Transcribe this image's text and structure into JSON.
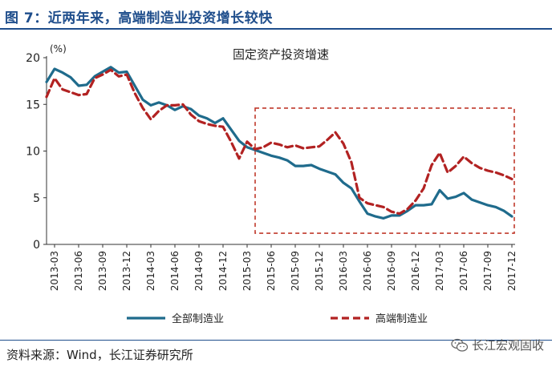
{
  "header": {
    "title": "图 7：近两年来，高端制造业投资增长较快"
  },
  "footer": {
    "source": "资料来源：Wind，长江证券研究所",
    "watermark": "长江宏观固收"
  },
  "colors": {
    "title": "#1f4e8c",
    "series_all": "#1f6b8c",
    "series_high": "#b22222",
    "highlight_box": "#c0392b"
  },
  "chart_data": {
    "type": "line",
    "title": "固定资产投资增速",
    "unit_label": "(%)",
    "xlabel": "",
    "ylabel": "(%)",
    "ylim": [
      0,
      20
    ],
    "yticks": [
      0,
      5,
      10,
      15,
      20
    ],
    "xlim": [
      "2013-02",
      "2017-12"
    ],
    "x_ticks": [
      "2013-03",
      "2013-06",
      "2013-09",
      "2013-12",
      "2014-03",
      "2014-06",
      "2014-09",
      "2014-12",
      "2015-03",
      "2015-06",
      "2015-09",
      "2015-12",
      "2016-03",
      "2016-06",
      "2016-09",
      "2016-12",
      "2017-03",
      "2017-06",
      "2017-09",
      "2017-12"
    ],
    "legend_position": "bottom",
    "highlight_range": {
      "x_start": "2015-04",
      "x_end": "2017-12",
      "y_low": 1.2,
      "y_high": 14.6
    },
    "x": [
      "2013-02",
      "2013-03",
      "2013-04",
      "2013-05",
      "2013-06",
      "2013-07",
      "2013-08",
      "2013-09",
      "2013-10",
      "2013-11",
      "2013-12",
      "2014-01",
      "2014-02",
      "2014-03",
      "2014-04",
      "2014-05",
      "2014-06",
      "2014-07",
      "2014-08",
      "2014-09",
      "2014-10",
      "2014-11",
      "2014-12",
      "2015-01",
      "2015-02",
      "2015-03",
      "2015-04",
      "2015-05",
      "2015-06",
      "2015-07",
      "2015-08",
      "2015-09",
      "2015-10",
      "2015-11",
      "2015-12",
      "2016-01",
      "2016-02",
      "2016-03",
      "2016-04",
      "2016-05",
      "2016-06",
      "2016-07",
      "2016-08",
      "2016-09",
      "2016-10",
      "2016-11",
      "2016-12",
      "2017-01",
      "2017-02",
      "2017-03",
      "2017-04",
      "2017-05",
      "2017-06",
      "2017-07",
      "2017-08",
      "2017-09",
      "2017-10",
      "2017-11",
      "2017-12"
    ],
    "series": [
      {
        "name": "全部制造业",
        "style": "solid",
        "values": [
          17.4,
          18.8,
          18.4,
          17.9,
          17.0,
          17.1,
          18.0,
          18.5,
          19.0,
          18.4,
          18.5,
          17.0,
          15.5,
          14.9,
          15.2,
          14.9,
          14.4,
          14.8,
          14.5,
          13.8,
          13.5,
          13.0,
          13.5,
          12.3,
          11.1,
          10.4,
          10.1,
          9.8,
          9.5,
          9.3,
          9.0,
          8.4,
          8.4,
          8.5,
          8.1,
          7.8,
          7.5,
          6.6,
          6.0,
          4.6,
          3.3,
          3.0,
          2.8,
          3.1,
          3.1,
          3.6,
          4.2,
          4.2,
          4.3,
          5.8,
          4.9,
          5.1,
          5.5,
          4.8,
          4.5,
          4.2,
          4.0,
          3.6,
          3.0
        ]
      },
      {
        "name": "高端制造业",
        "style": "dashed",
        "values": [
          15.8,
          17.8,
          16.6,
          16.3,
          16.0,
          16.1,
          17.8,
          18.2,
          18.7,
          18.0,
          18.2,
          16.2,
          14.6,
          13.4,
          14.3,
          14.9,
          14.9,
          15.0,
          13.9,
          13.2,
          12.9,
          12.7,
          12.6,
          11.0,
          9.2,
          11.0,
          10.2,
          10.4,
          10.9,
          10.7,
          10.4,
          10.6,
          10.3,
          10.4,
          10.5,
          11.2,
          12.0,
          10.8,
          8.8,
          5.0,
          4.4,
          4.2,
          4.0,
          3.5,
          3.3,
          3.8,
          4.7,
          6.0,
          8.5,
          9.8,
          7.7,
          8.4,
          9.4,
          8.7,
          8.2,
          7.9,
          7.7,
          7.4,
          7.0
        ]
      }
    ]
  }
}
